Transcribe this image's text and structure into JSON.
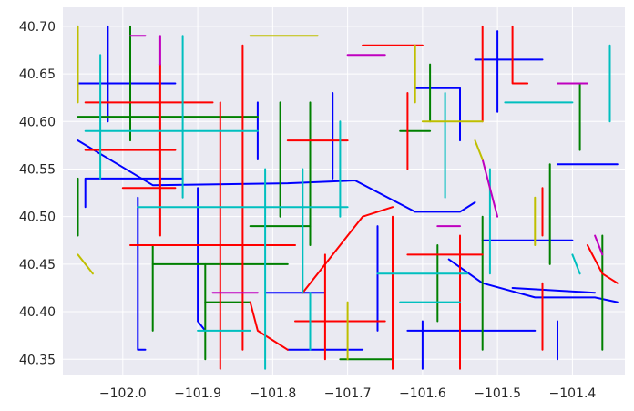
{
  "map": {
    "background": "#EAEAF2",
    "grid": true,
    "grid_color": "#FFFFFF",
    "x_axis": {
      "range": [
        -102.08,
        -101.33
      ],
      "ticks": [
        -102.0,
        -101.9,
        -101.8,
        -101.7,
        -101.6,
        -101.5,
        -101.4
      ],
      "tick_labels": [
        "−102.0",
        "−101.9",
        "−101.8",
        "−101.7",
        "−101.6",
        "−101.5",
        "−101.4"
      ]
    },
    "y_axis": {
      "range": [
        40.333,
        40.72
      ],
      "ticks": [
        40.35,
        40.4,
        40.45,
        40.5,
        40.55,
        40.6,
        40.65,
        40.7
      ],
      "tick_labels": [
        "40.35",
        "40.40",
        "40.45",
        "40.50",
        "40.55",
        "40.60",
        "40.65",
        "40.70"
      ]
    },
    "road_colors": [
      "#0000FF",
      "#008000",
      "#FF0000",
      "#00BFBF",
      "#BF00BF",
      "#BFBF00"
    ],
    "roads": [
      {
        "c": 0,
        "pts": [
          [
            -102.06,
            40.58
          ],
          [
            -101.96,
            40.533
          ],
          [
            -101.78,
            40.535
          ],
          [
            -101.69,
            40.538
          ],
          [
            -101.61,
            40.505
          ],
          [
            -101.55,
            40.505
          ],
          [
            -101.53,
            40.515
          ]
        ]
      },
      {
        "c": 0,
        "pts": [
          [
            -101.565,
            40.455
          ],
          [
            -101.52,
            40.43
          ],
          [
            -101.45,
            40.415
          ],
          [
            -101.37,
            40.415
          ],
          [
            -101.34,
            40.41
          ]
        ]
      },
      {
        "c": 0,
        "pts": [
          [
            -101.37,
            40.42
          ],
          [
            -101.48,
            40.425
          ]
        ]
      },
      {
        "c": 0,
        "pts": [
          [
            -101.52,
            40.475
          ],
          [
            -101.4,
            40.475
          ]
        ]
      },
      {
        "c": 0,
        "pts": [
          [
            -101.62,
            40.38
          ],
          [
            -101.45,
            40.38
          ]
        ]
      },
      {
        "c": 0,
        "pts": [
          [
            -101.6,
            40.34
          ],
          [
            -101.6,
            40.39
          ]
        ]
      },
      {
        "c": 0,
        "pts": [
          [
            -101.5,
            40.695
          ],
          [
            -101.5,
            40.61
          ]
        ]
      },
      {
        "c": 0,
        "pts": [
          [
            -101.61,
            40.635
          ],
          [
            -101.55,
            40.635
          ],
          [
            -101.55,
            40.58
          ]
        ]
      },
      {
        "c": 0,
        "pts": [
          [
            -101.53,
            40.665
          ],
          [
            -101.44,
            40.665
          ]
        ]
      },
      {
        "c": 0,
        "pts": [
          [
            -101.42,
            40.555
          ],
          [
            -101.34,
            40.555
          ]
        ]
      },
      {
        "c": 0,
        "pts": [
          [
            -101.42,
            40.39
          ],
          [
            -101.42,
            40.35
          ]
        ]
      },
      {
        "c": 0,
        "pts": [
          [
            -102.05,
            40.51
          ],
          [
            -102.05,
            40.54
          ],
          [
            -101.92,
            40.54
          ]
        ]
      },
      {
        "c": 0,
        "pts": [
          [
            -102.06,
            40.64
          ],
          [
            -102.06,
            40.7
          ]
        ]
      },
      {
        "c": 0,
        "pts": [
          [
            -102.06,
            40.64
          ],
          [
            -101.93,
            40.64
          ]
        ]
      },
      {
        "c": 0,
        "pts": [
          [
            -102.02,
            40.7
          ],
          [
            -102.02,
            40.6
          ]
        ]
      },
      {
        "c": 0,
        "pts": [
          [
            -101.98,
            40.52
          ],
          [
            -101.98,
            40.36
          ],
          [
            -101.97,
            40.36
          ]
        ]
      },
      {
        "c": 0,
        "pts": [
          [
            -101.9,
            40.53
          ],
          [
            -101.9,
            40.39
          ],
          [
            -101.89,
            40.38
          ]
        ]
      },
      {
        "c": 0,
        "pts": [
          [
            -101.82,
            40.62
          ],
          [
            -101.82,
            40.56
          ]
        ]
      },
      {
        "c": 0,
        "pts": [
          [
            -101.81,
            40.42
          ],
          [
            -101.73,
            40.42
          ]
        ]
      },
      {
        "c": 0,
        "pts": [
          [
            -101.72,
            40.63
          ],
          [
            -101.72,
            40.54
          ]
        ]
      },
      {
        "c": 0,
        "pts": [
          [
            -101.66,
            40.49
          ],
          [
            -101.66,
            40.38
          ]
        ]
      },
      {
        "c": 0,
        "pts": [
          [
            -101.78,
            40.36
          ],
          [
            -101.68,
            40.36
          ]
        ]
      },
      {
        "c": 1,
        "pts": [
          [
            -102.06,
            40.605
          ],
          [
            -101.82,
            40.605
          ]
        ]
      },
      {
        "c": 1,
        "pts": [
          [
            -102.06,
            40.54
          ],
          [
            -102.06,
            40.48
          ]
        ]
      },
      {
        "c": 1,
        "pts": [
          [
            -101.96,
            40.47
          ],
          [
            -101.96,
            40.38
          ]
        ]
      },
      {
        "c": 1,
        "pts": [
          [
            -101.89,
            40.41
          ],
          [
            -101.83,
            40.41
          ]
        ]
      },
      {
        "c": 1,
        "pts": [
          [
            -101.89,
            40.45
          ],
          [
            -101.89,
            40.35
          ]
        ]
      },
      {
        "c": 1,
        "pts": [
          [
            -101.96,
            40.45
          ],
          [
            -101.78,
            40.45
          ]
        ]
      },
      {
        "c": 1,
        "pts": [
          [
            -101.83,
            40.49
          ],
          [
            -101.75,
            40.49
          ]
        ]
      },
      {
        "c": 1,
        "pts": [
          [
            -101.79,
            40.62
          ],
          [
            -101.79,
            40.5
          ]
        ]
      },
      {
        "c": 1,
        "pts": [
          [
            -101.75,
            40.62
          ],
          [
            -101.75,
            40.47
          ]
        ]
      },
      {
        "c": 1,
        "pts": [
          [
            -101.63,
            40.59
          ],
          [
            -101.59,
            40.59
          ]
        ]
      },
      {
        "c": 1,
        "pts": [
          [
            -101.59,
            40.66
          ],
          [
            -101.59,
            40.6
          ]
        ]
      },
      {
        "c": 1,
        "pts": [
          [
            -101.58,
            40.47
          ],
          [
            -101.58,
            40.39
          ]
        ]
      },
      {
        "c": 1,
        "pts": [
          [
            -101.52,
            40.5
          ],
          [
            -101.52,
            40.36
          ]
        ]
      },
      {
        "c": 1,
        "pts": [
          [
            -101.43,
            40.555
          ],
          [
            -101.43,
            40.45
          ]
        ]
      },
      {
        "c": 1,
        "pts": [
          [
            -101.39,
            40.64
          ],
          [
            -101.39,
            40.57
          ]
        ]
      },
      {
        "c": 1,
        "pts": [
          [
            -101.36,
            40.48
          ],
          [
            -101.36,
            40.36
          ]
        ]
      },
      {
        "c": 1,
        "pts": [
          [
            -101.71,
            40.35
          ],
          [
            -101.64,
            40.35
          ]
        ]
      },
      {
        "c": 1,
        "pts": [
          [
            -101.99,
            40.7
          ],
          [
            -101.99,
            40.58
          ]
        ]
      },
      {
        "c": 2,
        "pts": [
          [
            -102.05,
            40.57
          ],
          [
            -101.93,
            40.57
          ]
        ]
      },
      {
        "c": 2,
        "pts": [
          [
            -102.05,
            40.62
          ],
          [
            -101.88,
            40.62
          ]
        ]
      },
      {
        "c": 2,
        "pts": [
          [
            -101.95,
            40.66
          ],
          [
            -101.95,
            40.48
          ]
        ]
      },
      {
        "c": 2,
        "pts": [
          [
            -101.99,
            40.47
          ],
          [
            -101.77,
            40.47
          ]
        ]
      },
      {
        "c": 2,
        "pts": [
          [
            -101.84,
            40.68
          ],
          [
            -101.84,
            40.36
          ]
        ]
      },
      {
        "c": 2,
        "pts": [
          [
            -101.87,
            40.62
          ],
          [
            -101.87,
            40.34
          ]
        ]
      },
      {
        "c": 2,
        "pts": [
          [
            -101.78,
            40.58
          ],
          [
            -101.7,
            40.58
          ]
        ]
      },
      {
        "c": 2,
        "pts": [
          [
            -101.76,
            40.42
          ],
          [
            -101.68,
            40.5
          ],
          [
            -101.64,
            40.51
          ]
        ]
      },
      {
        "c": 2,
        "pts": [
          [
            -101.77,
            40.39
          ],
          [
            -101.65,
            40.39
          ]
        ]
      },
      {
        "c": 2,
        "pts": [
          [
            -101.73,
            40.46
          ],
          [
            -101.73,
            40.35
          ]
        ]
      },
      {
        "c": 2,
        "pts": [
          [
            -101.64,
            40.5
          ],
          [
            -101.64,
            40.34
          ]
        ]
      },
      {
        "c": 2,
        "pts": [
          [
            -101.62,
            40.46
          ],
          [
            -101.52,
            40.46
          ]
        ]
      },
      {
        "c": 2,
        "pts": [
          [
            -101.68,
            40.68
          ],
          [
            -101.6,
            40.68
          ]
        ]
      },
      {
        "c": 2,
        "pts": [
          [
            -101.62,
            40.63
          ],
          [
            -101.62,
            40.55
          ]
        ]
      },
      {
        "c": 2,
        "pts": [
          [
            -101.52,
            40.7
          ],
          [
            -101.52,
            40.6
          ]
        ]
      },
      {
        "c": 2,
        "pts": [
          [
            -101.48,
            40.7
          ],
          [
            -101.48,
            40.64
          ],
          [
            -101.46,
            40.64
          ]
        ]
      },
      {
        "c": 2,
        "pts": [
          [
            -101.55,
            40.48
          ],
          [
            -101.55,
            40.34
          ]
        ]
      },
      {
        "c": 2,
        "pts": [
          [
            -101.44,
            40.43
          ],
          [
            -101.44,
            40.36
          ]
        ]
      },
      {
        "c": 2,
        "pts": [
          [
            -101.38,
            40.47
          ],
          [
            -101.36,
            40.44
          ],
          [
            -101.34,
            40.43
          ]
        ]
      },
      {
        "c": 2,
        "pts": [
          [
            -101.44,
            40.53
          ],
          [
            -101.44,
            40.48
          ]
        ]
      },
      {
        "c": 2,
        "pts": [
          [
            -102.0,
            40.53
          ],
          [
            -101.93,
            40.53
          ]
        ]
      },
      {
        "c": 2,
        "pts": [
          [
            -101.83,
            40.41
          ],
          [
            -101.82,
            40.38
          ],
          [
            -101.78,
            40.36
          ]
        ]
      },
      {
        "c": 3,
        "pts": [
          [
            -102.05,
            40.59
          ],
          [
            -101.82,
            40.59
          ]
        ]
      },
      {
        "c": 3,
        "pts": [
          [
            -102.03,
            40.67
          ],
          [
            -102.03,
            40.54
          ]
        ]
      },
      {
        "c": 3,
        "pts": [
          [
            -101.92,
            40.69
          ],
          [
            -101.92,
            40.52
          ]
        ]
      },
      {
        "c": 3,
        "pts": [
          [
            -101.98,
            40.51
          ],
          [
            -101.7,
            40.51
          ]
        ]
      },
      {
        "c": 3,
        "pts": [
          [
            -101.81,
            40.55
          ],
          [
            -101.81,
            40.34
          ]
        ]
      },
      {
        "c": 3,
        "pts": [
          [
            -101.76,
            40.55
          ],
          [
            -101.76,
            40.42
          ]
        ]
      },
      {
        "c": 3,
        "pts": [
          [
            -101.71,
            40.6
          ],
          [
            -101.71,
            40.5
          ]
        ]
      },
      {
        "c": 3,
        "pts": [
          [
            -101.75,
            40.42
          ],
          [
            -101.75,
            40.36
          ]
        ]
      },
      {
        "c": 3,
        "pts": [
          [
            -101.66,
            40.44
          ],
          [
            -101.54,
            40.44
          ]
        ]
      },
      {
        "c": 3,
        "pts": [
          [
            -101.57,
            40.63
          ],
          [
            -101.57,
            40.52
          ]
        ]
      },
      {
        "c": 3,
        "pts": [
          [
            -101.51,
            40.55
          ],
          [
            -101.51,
            40.44
          ]
        ]
      },
      {
        "c": 3,
        "pts": [
          [
            -101.49,
            40.62
          ],
          [
            -101.4,
            40.62
          ]
        ]
      },
      {
        "c": 3,
        "pts": [
          [
            -101.35,
            40.68
          ],
          [
            -101.35,
            40.6
          ]
        ]
      },
      {
        "c": 3,
        "pts": [
          [
            -101.4,
            40.46
          ],
          [
            -101.39,
            40.44
          ]
        ]
      },
      {
        "c": 3,
        "pts": [
          [
            -101.63,
            40.41
          ],
          [
            -101.55,
            40.41
          ]
        ]
      },
      {
        "c": 3,
        "pts": [
          [
            -101.9,
            40.38
          ],
          [
            -101.83,
            40.38
          ]
        ]
      },
      {
        "c": 4,
        "pts": [
          [
            -101.99,
            40.69
          ],
          [
            -101.97,
            40.69
          ]
        ]
      },
      {
        "c": 4,
        "pts": [
          [
            -101.95,
            40.69
          ],
          [
            -101.95,
            40.66
          ]
        ]
      },
      {
        "c": 4,
        "pts": [
          [
            -101.88,
            40.42
          ],
          [
            -101.82,
            40.42
          ]
        ]
      },
      {
        "c": 4,
        "pts": [
          [
            -101.7,
            40.67
          ],
          [
            -101.65,
            40.67
          ]
        ]
      },
      {
        "c": 4,
        "pts": [
          [
            -101.52,
            40.56
          ],
          [
            -101.5,
            40.5
          ]
        ]
      },
      {
        "c": 4,
        "pts": [
          [
            -101.42,
            40.64
          ],
          [
            -101.38,
            40.64
          ]
        ]
      },
      {
        "c": 4,
        "pts": [
          [
            -101.37,
            40.48
          ],
          [
            -101.36,
            40.46
          ]
        ]
      },
      {
        "c": 4,
        "pts": [
          [
            -101.58,
            40.49
          ],
          [
            -101.55,
            40.49
          ]
        ]
      },
      {
        "c": 5,
        "pts": [
          [
            -102.06,
            40.7
          ],
          [
            -102.06,
            40.62
          ]
        ]
      },
      {
        "c": 5,
        "pts": [
          [
            -101.83,
            40.69
          ],
          [
            -101.74,
            40.69
          ]
        ]
      },
      {
        "c": 5,
        "pts": [
          [
            -101.6,
            40.6
          ],
          [
            -101.52,
            40.6
          ]
        ]
      },
      {
        "c": 5,
        "pts": [
          [
            -101.61,
            40.68
          ],
          [
            -101.61,
            40.62
          ]
        ]
      },
      {
        "c": 5,
        "pts": [
          [
            -101.45,
            40.52
          ],
          [
            -101.45,
            40.47
          ]
        ]
      },
      {
        "c": 5,
        "pts": [
          [
            -101.7,
            40.41
          ],
          [
            -101.7,
            40.35
          ]
        ]
      },
      {
        "c": 5,
        "pts": [
          [
            -102.06,
            40.46
          ],
          [
            -102.04,
            40.44
          ]
        ]
      },
      {
        "c": 5,
        "pts": [
          [
            -101.53,
            40.58
          ],
          [
            -101.52,
            40.56
          ]
        ]
      }
    ]
  }
}
